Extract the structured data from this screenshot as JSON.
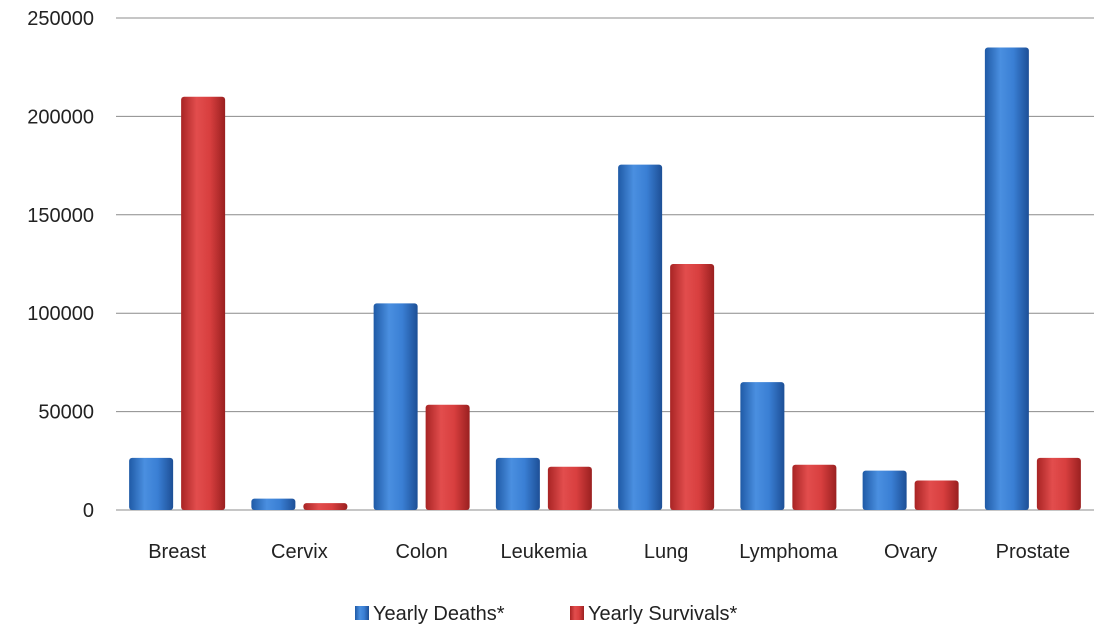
{
  "chart_data": {
    "type": "bar",
    "categories": [
      "Breast",
      "Cervix",
      "Colon",
      "Leukemia",
      "Lung",
      "Lymphoma",
      "Ovary",
      "Prostate"
    ],
    "series": [
      {
        "name": "Yearly Deaths*",
        "color": "#3d7fcc",
        "values": [
          26500,
          5800,
          105000,
          26500,
          175500,
          65000,
          20000,
          235000
        ]
      },
      {
        "name": "Yearly Survivals*",
        "color": "#d63c3c",
        "values": [
          210000,
          3500,
          53500,
          22000,
          125000,
          23000,
          15000,
          26500
        ]
      }
    ],
    "ylim": [
      0,
      250000
    ],
    "yticks": [
      0,
      50000,
      100000,
      150000,
      200000,
      250000
    ],
    "title": "",
    "xlabel": "",
    "ylabel": "",
    "grid": true,
    "legend_position": "bottom"
  }
}
